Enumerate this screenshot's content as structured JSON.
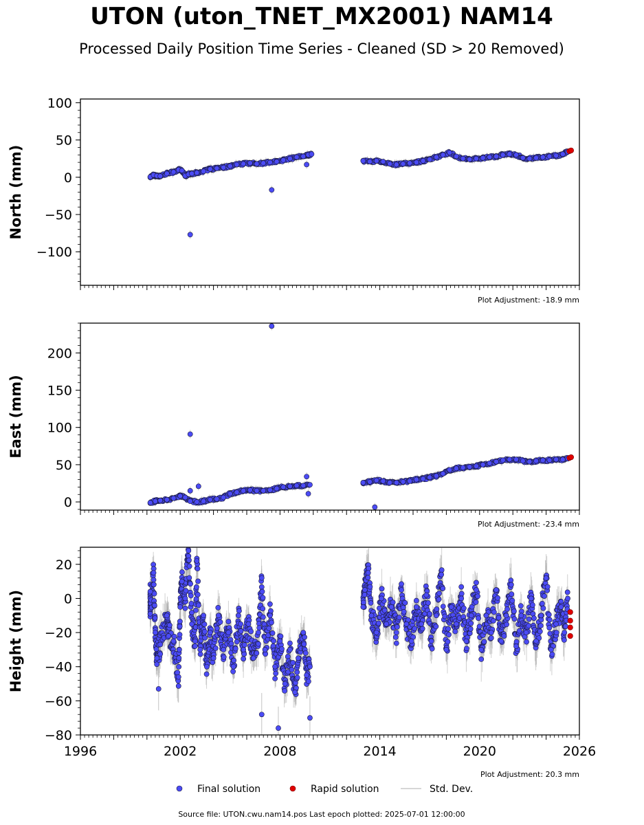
{
  "title": "UTON (uton_TNET_MX2001) NAM14",
  "subtitle": "Processed Daily Position Time Series - Cleaned (SD > 20 Removed)",
  "legend": {
    "final": "Final solution",
    "rapid": "Rapid solution",
    "std": "Std. Dev."
  },
  "source": "Source file: UTON.cwu.nam14.pos  Last epoch plotted: 2025-07-01 12:00:00",
  "colors": {
    "final": "#4b4bf5",
    "final_edge": "#1a1a3a",
    "rapid": "#e00000",
    "std": "#aaaaaa"
  },
  "chart_data": [
    {
      "type": "scatter",
      "name": "north",
      "ylabel": "North (mm)",
      "ylim": [
        -145,
        105
      ],
      "xlim": [
        1996,
        2026
      ],
      "yticks": [
        100,
        50,
        0,
        -50,
        -100
      ],
      "ytick_labels": [
        "100",
        "50",
        "0",
        "−50",
        "−100"
      ],
      "xticks": [
        1996,
        2002,
        2008,
        2014,
        2020,
        2026
      ],
      "xtick_labels": [],
      "adjustment": "Plot Adjustment: -18.9 mm",
      "final": [
        [
          2000.2,
          0.5
        ],
        [
          2000.4,
          3
        ],
        [
          2000.6,
          2
        ],
        [
          2000.8,
          1.5
        ],
        [
          2001.2,
          5
        ],
        [
          2001.6,
          7
        ],
        [
          2001.9,
          10
        ],
        [
          2002.1,
          9
        ],
        [
          2002.3,
          2
        ],
        [
          2002.5,
          4
        ],
        [
          2002.7,
          5
        ],
        [
          2003.0,
          6
        ],
        [
          2003.4,
          8
        ],
        [
          2003.8,
          11
        ],
        [
          2004.2,
          12
        ],
        [
          2004.6,
          13
        ],
        [
          2005.0,
          15
        ],
        [
          2005.4,
          17
        ],
        [
          2005.8,
          18
        ],
        [
          2006.2,
          19
        ],
        [
          2006.6,
          18
        ],
        [
          2007.0,
          19
        ],
        [
          2007.4,
          20
        ],
        [
          2007.8,
          21
        ],
        [
          2008.2,
          23
        ],
        [
          2008.6,
          25
        ],
        [
          2009.0,
          27
        ],
        [
          2009.4,
          28
        ],
        [
          2009.7,
          30
        ],
        [
          2009.9,
          31
        ],
        [
          2013.0,
          22
        ],
        [
          2013.4,
          21
        ],
        [
          2013.8,
          22
        ],
        [
          2014.2,
          21
        ],
        [
          2014.6,
          18
        ],
        [
          2015.0,
          17
        ],
        [
          2015.4,
          18
        ],
        [
          2015.8,
          19
        ],
        [
          2016.2,
          20
        ],
        [
          2016.6,
          22
        ],
        [
          2017.0,
          24
        ],
        [
          2017.4,
          27
        ],
        [
          2017.8,
          30
        ],
        [
          2018.2,
          33
        ],
        [
          2018.6,
          28
        ],
        [
          2019.0,
          25
        ],
        [
          2019.4,
          24
        ],
        [
          2019.8,
          25
        ],
        [
          2020.2,
          26
        ],
        [
          2020.6,
          27
        ],
        [
          2021.0,
          28
        ],
        [
          2021.4,
          30
        ],
        [
          2021.8,
          31
        ],
        [
          2022.2,
          30
        ],
        [
          2022.6,
          26
        ],
        [
          2023.0,
          25
        ],
        [
          2023.4,
          26
        ],
        [
          2023.8,
          27
        ],
        [
          2024.2,
          28
        ],
        [
          2024.6,
          29
        ],
        [
          2025.0,
          31
        ],
        [
          2025.3,
          34
        ]
      ],
      "outliers": [
        [
          2002.6,
          -77
        ],
        [
          2007.5,
          -17
        ],
        [
          2009.6,
          17
        ]
      ],
      "rapid": [
        [
          2025.4,
          35
        ],
        [
          2025.5,
          36
        ]
      ]
    },
    {
      "type": "scatter",
      "name": "east",
      "ylabel": "East (mm)",
      "ylim": [
        -11,
        240
      ],
      "xlim": [
        1996,
        2026
      ],
      "yticks": [
        200,
        150,
        100,
        50,
        0
      ],
      "ytick_labels": [
        "200",
        "150",
        "100",
        "50",
        "0"
      ],
      "xticks": [
        1996,
        2002,
        2008,
        2014,
        2020,
        2026
      ],
      "xtick_labels": [],
      "adjustment": "Plot Adjustment: -23.4 mm",
      "final": [
        [
          2000.2,
          -1
        ],
        [
          2000.5,
          1
        ],
        [
          2000.8,
          2
        ],
        [
          2001.2,
          3
        ],
        [
          2001.6,
          5
        ],
        [
          2002.0,
          8
        ],
        [
          2002.3,
          6
        ],
        [
          2002.6,
          1
        ],
        [
          2003.0,
          0
        ],
        [
          2003.4,
          1
        ],
        [
          2003.8,
          3
        ],
        [
          2004.2,
          4
        ],
        [
          2004.6,
          6
        ],
        [
          2005.0,
          11
        ],
        [
          2005.4,
          13
        ],
        [
          2005.8,
          15
        ],
        [
          2006.2,
          16
        ],
        [
          2006.6,
          15
        ],
        [
          2007.0,
          15
        ],
        [
          2007.4,
          16
        ],
        [
          2007.8,
          18
        ],
        [
          2008.2,
          20
        ],
        [
          2008.6,
          21
        ],
        [
          2009.0,
          22
        ],
        [
          2009.4,
          22
        ],
        [
          2009.8,
          23
        ],
        [
          2013.0,
          26
        ],
        [
          2013.4,
          27
        ],
        [
          2013.8,
          29
        ],
        [
          2014.2,
          28
        ],
        [
          2014.6,
          26
        ],
        [
          2015.0,
          26
        ],
        [
          2015.4,
          27
        ],
        [
          2015.8,
          28
        ],
        [
          2016.2,
          30
        ],
        [
          2016.6,
          31
        ],
        [
          2017.0,
          33
        ],
        [
          2017.4,
          35
        ],
        [
          2017.8,
          38
        ],
        [
          2018.2,
          43
        ],
        [
          2018.6,
          45
        ],
        [
          2019.0,
          46
        ],
        [
          2019.4,
          47
        ],
        [
          2019.8,
          48
        ],
        [
          2020.2,
          50
        ],
        [
          2020.6,
          52
        ],
        [
          2021.0,
          54
        ],
        [
          2021.4,
          56
        ],
        [
          2021.8,
          57
        ],
        [
          2022.2,
          57
        ],
        [
          2022.6,
          55
        ],
        [
          2023.0,
          54
        ],
        [
          2023.4,
          55
        ],
        [
          2023.8,
          56
        ],
        [
          2024.2,
          56
        ],
        [
          2024.6,
          57
        ],
        [
          2025.0,
          57
        ],
        [
          2025.3,
          58
        ]
      ],
      "outliers": [
        [
          2002.6,
          91
        ],
        [
          2002.6,
          15
        ],
        [
          2003.1,
          21
        ],
        [
          2007.5,
          236
        ],
        [
          2009.6,
          34
        ],
        [
          2009.7,
          11
        ],
        [
          2013.7,
          -7
        ]
      ],
      "rapid": [
        [
          2025.4,
          59
        ],
        [
          2025.5,
          60
        ]
      ]
    },
    {
      "type": "scatter",
      "name": "height",
      "ylabel": "Height (mm)",
      "ylim": [
        -80,
        30
      ],
      "xlim": [
        1996,
        2026
      ],
      "yticks": [
        20,
        0,
        -20,
        -40,
        -60,
        -80
      ],
      "ytick_labels": [
        "20",
        "0",
        "−20",
        "−40",
        "−60",
        "−80"
      ],
      "xticks": [
        1996,
        2002,
        2008,
        2014,
        2020,
        2026
      ],
      "xtick_labels": [
        "1996",
        "2002",
        "2008",
        "2014",
        "2020",
        "2026"
      ],
      "adjustment": "Plot Adjustment: 20.3 mm",
      "final": [
        [
          2000.2,
          4
        ],
        [
          2000.2,
          -9
        ],
        [
          2000.4,
          15
        ],
        [
          2000.5,
          -20
        ],
        [
          2000.6,
          -35
        ],
        [
          2000.8,
          -27
        ],
        [
          2001.2,
          -10
        ],
        [
          2001.3,
          -22
        ],
        [
          2001.6,
          -25
        ],
        [
          2001.9,
          -46
        ],
        [
          2002.0,
          -5
        ],
        [
          2002.1,
          10
        ],
        [
          2002.3,
          0
        ],
        [
          2002.5,
          28
        ],
        [
          2002.7,
          -15
        ],
        [
          2002.9,
          -25
        ],
        [
          2003.0,
          22
        ],
        [
          2003.2,
          -30
        ],
        [
          2003.4,
          -10
        ],
        [
          2003.6,
          -40
        ],
        [
          2003.8,
          -20
        ],
        [
          2004.0,
          -35
        ],
        [
          2004.3,
          -10
        ],
        [
          2004.6,
          -30
        ],
        [
          2004.9,
          -20
        ],
        [
          2005.2,
          -40
        ],
        [
          2005.5,
          -10
        ],
        [
          2005.8,
          -30
        ],
        [
          2006.1,
          -15
        ],
        [
          2006.4,
          -35
        ],
        [
          2006.7,
          -20
        ],
        [
          2006.9,
          12
        ],
        [
          2007.1,
          -30
        ],
        [
          2007.4,
          -10
        ],
        [
          2007.7,
          -40
        ],
        [
          2008.0,
          -25
        ],
        [
          2008.3,
          -50
        ],
        [
          2008.6,
          -30
        ],
        [
          2008.9,
          -55
        ],
        [
          2009.1,
          -35
        ],
        [
          2009.4,
          -20
        ],
        [
          2009.6,
          -45
        ],
        [
          2009.8,
          -40
        ],
        [
          2013.0,
          -5
        ],
        [
          2013.1,
          5
        ],
        [
          2013.3,
          15
        ],
        [
          2013.5,
          -10
        ],
        [
          2013.8,
          -20
        ],
        [
          2014.1,
          0
        ],
        [
          2014.4,
          -15
        ],
        [
          2014.7,
          -5
        ],
        [
          2015.0,
          -20
        ],
        [
          2015.3,
          5
        ],
        [
          2015.6,
          -15
        ],
        [
          2015.9,
          -25
        ],
        [
          2016.2,
          -5
        ],
        [
          2016.5,
          -15
        ],
        [
          2016.8,
          2
        ],
        [
          2017.1,
          -25
        ],
        [
          2017.4,
          -10
        ],
        [
          2017.7,
          14
        ],
        [
          2018.0,
          -30
        ],
        [
          2018.3,
          -5
        ],
        [
          2018.6,
          -15
        ],
        [
          2018.9,
          0
        ],
        [
          2019.2,
          -25
        ],
        [
          2019.5,
          -10
        ],
        [
          2019.8,
          5
        ],
        [
          2020.1,
          -30
        ],
        [
          2020.4,
          -10
        ],
        [
          2020.7,
          -20
        ],
        [
          2021.0,
          5
        ],
        [
          2021.3,
          -25
        ],
        [
          2021.6,
          -10
        ],
        [
          2021.9,
          8
        ],
        [
          2022.2,
          -28
        ],
        [
          2022.5,
          -10
        ],
        [
          2022.8,
          -20
        ],
        [
          2023.1,
          0
        ],
        [
          2023.4,
          -25
        ],
        [
          2023.7,
          -10
        ],
        [
          2024.0,
          12
        ],
        [
          2024.3,
          -30
        ],
        [
          2024.6,
          -15
        ],
        [
          2024.9,
          -5
        ],
        [
          2025.1,
          -20
        ],
        [
          2025.3,
          0
        ]
      ],
      "outliers": [
        [
          2000.7,
          -53
        ],
        [
          2006.9,
          -68
        ],
        [
          2007.9,
          -76
        ],
        [
          2009.8,
          -70
        ]
      ],
      "rapid": [
        [
          2025.45,
          -8
        ],
        [
          2025.45,
          -13
        ],
        [
          2025.45,
          -17
        ],
        [
          2025.45,
          -22
        ]
      ]
    }
  ]
}
